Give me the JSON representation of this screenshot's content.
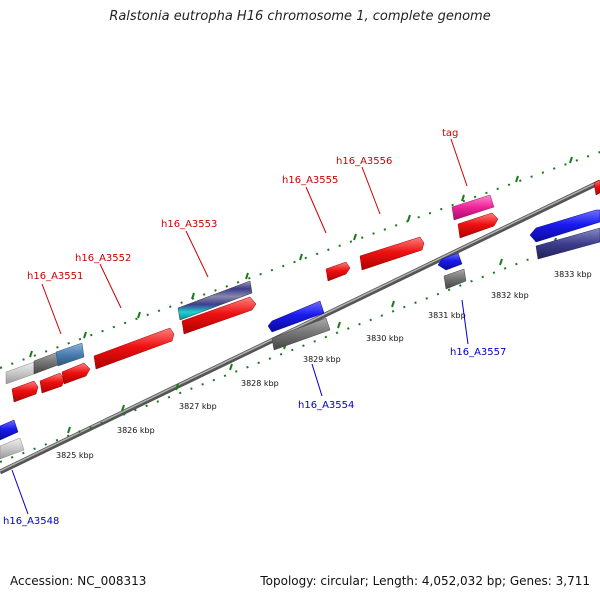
{
  "title": "Ralstonia eutropha H16 chromosome 1, complete genome",
  "footer": {
    "accession": "Accession: NC_008313",
    "summary": "Topology: circular; Length: 4,052,032 bp; Genes: 3,711"
  },
  "colors": {
    "forward_label": "#cc0000",
    "reverse_label": "#0000cc",
    "backbone": "#888888",
    "tick": "#1a7a1a",
    "cds_red": "#ee1111",
    "cds_blue": "#1a1aee",
    "gene_gray": "#777777",
    "gene_lightgray": "#c8c8c8",
    "gene_steelblue": "#4a7db0",
    "gene_navy": "#3d3d8c",
    "trna_magenta": "#ee2299"
  },
  "scale": {
    "unit": "kbp",
    "ticks": [
      "3825 kbp",
      "3826 kbp",
      "3827 kbp",
      "3828 kbp",
      "3829 kbp",
      "3830 kbp",
      "3831 kbp",
      "3832 kbp",
      "3833 kbp"
    ]
  },
  "labels": {
    "forward": [
      "h16_A3551",
      "h16_A3552",
      "h16_A3553",
      "h16_A3555",
      "h16_A3556",
      "tag"
    ],
    "reverse": [
      "h16_A3548",
      "h16_A3554",
      "h16_A3557"
    ]
  }
}
